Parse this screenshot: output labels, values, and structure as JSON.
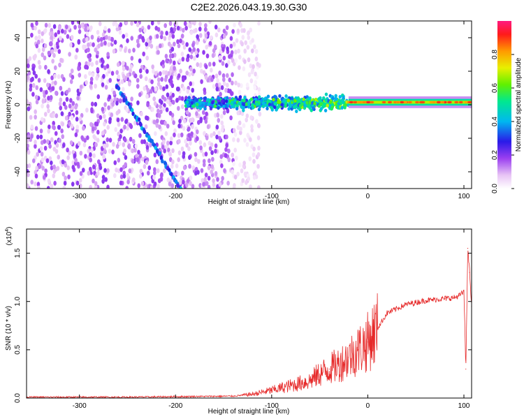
{
  "title": "C2E2.2026.043.19.30.G30",
  "colors": {
    "frame": "#000000",
    "snr_line": "#e62a2a",
    "spectrogram_base": "#7a2be0",
    "background": "#ffffff"
  },
  "chart_data": [
    {
      "id": "spectrogram",
      "type": "heatmap",
      "title": "",
      "xlabel": "Height of straight line (km)",
      "ylabel": "Frequency (Hz)",
      "xlim": [
        -355,
        108
      ],
      "ylim": [
        -50,
        50
      ],
      "xticks": [
        -300,
        -200,
        -100,
        0,
        100
      ],
      "yticks": [
        -40,
        -20,
        0,
        20,
        40
      ],
      "colorbar": {
        "label": "Normalized spectral amplitude",
        "range": [
          0.0,
          1.0
        ],
        "ticks": [
          0.0,
          0.2,
          0.4,
          0.6,
          0.8
        ],
        "tick_labels": [
          "0.0",
          "0.2",
          "0.4",
          "0.6",
          "0.8"
        ]
      },
      "features": [
        {
          "name": "noise-field",
          "x_from": -355,
          "x_to": -140,
          "y_from": -50,
          "y_to": 50,
          "amplitude": 0.12
        },
        {
          "name": "noise-sparse",
          "x_from": -140,
          "x_to": -112,
          "y_from": -50,
          "y_to": 50,
          "amplitude": 0.05
        },
        {
          "name": "diagonal-trace",
          "x_from": -262,
          "x_to": -195,
          "y_from": 12,
          "y_to": -50,
          "amplitude": 0.3
        },
        {
          "name": "broad-band",
          "x_from": -190,
          "x_to": -20,
          "y_from": -5,
          "y_to": 8,
          "amplitude": 0.4
        },
        {
          "name": "narrow-carrier",
          "x_from": -20,
          "x_to": 108,
          "y_from": 0,
          "y_to": 3,
          "amplitude": 0.95
        }
      ]
    },
    {
      "id": "snr",
      "type": "line",
      "title": "",
      "xlabel": "Height of straight line (km)",
      "ylabel": "SNR (10 * v/v)",
      "multiplier_label": "(x10",
      "multiplier_exp": "4",
      "xlim": [
        -355,
        108
      ],
      "ylim": [
        0,
        1.75
      ],
      "xticks": [
        -300,
        -200,
        -100,
        0,
        100
      ],
      "yticks": [
        0.0,
        0.5,
        1.0,
        1.5
      ],
      "ytick_labels": [
        "0.0",
        "0.5",
        "1.0",
        "1.5"
      ],
      "series": [
        {
          "name": "SNR",
          "color": "#e62a2a",
          "x": [
            -355,
            -250,
            -140,
            -120,
            -100,
            -80,
            -60,
            -50,
            -40,
            -30,
            -20,
            -10,
            0,
            10,
            20,
            40,
            60,
            80,
            90,
            95,
            100,
            102,
            104,
            106,
            108
          ],
          "y": [
            0.01,
            0.01,
            0.02,
            0.04,
            0.08,
            0.13,
            0.18,
            0.25,
            0.3,
            0.35,
            0.42,
            0.5,
            0.58,
            0.72,
            0.88,
            0.97,
            1.01,
            1.03,
            1.04,
            1.06,
            1.1,
            0.3,
            1.55,
            1.3,
            0.95
          ]
        }
      ]
    }
  ]
}
